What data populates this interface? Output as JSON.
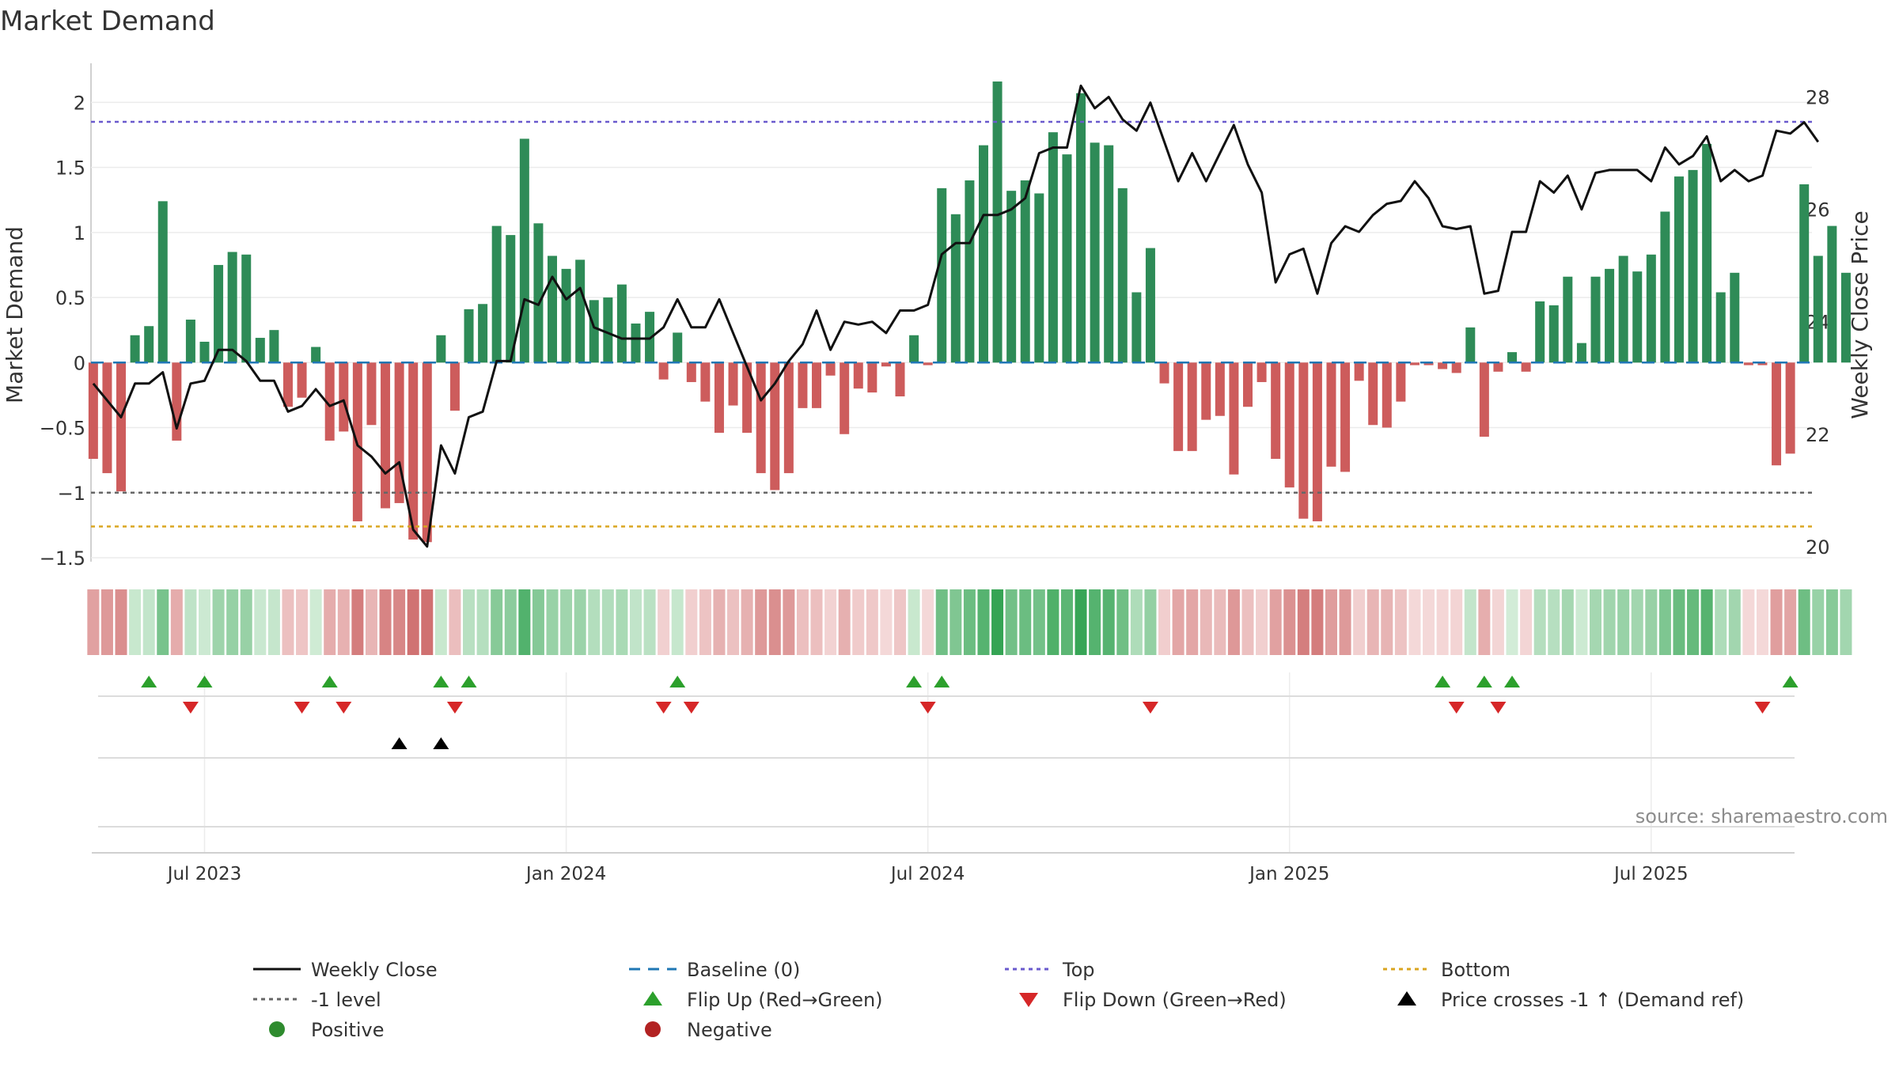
{
  "chart_data": {
    "type": "bar",
    "title": "Market Demand",
    "ylabel": "Market Demand",
    "y2label": "Weekly Close Price",
    "ylim": [
      -1.5,
      2.3
    ],
    "y2lim": [
      19.8,
      28.6
    ],
    "yticks": [
      -1.5,
      -1,
      -0.5,
      0,
      0.5,
      1,
      1.5,
      2
    ],
    "ytick_labels": [
      "−1.5",
      "−1",
      "−0.5",
      "0",
      "0.5",
      "1",
      "1.5",
      "2"
    ],
    "y2ticks": [
      20,
      22,
      24,
      26,
      28
    ],
    "y2tick_labels": [
      "20",
      "22",
      "24",
      "26",
      "28"
    ],
    "x_range_weeks": [
      -8,
      120
    ],
    "xticks": [
      {
        "week": 0,
        "label": "Jul 2023"
      },
      {
        "week": 26,
        "label": "Jan 2024"
      },
      {
        "week": 52,
        "label": "Jul 2024"
      },
      {
        "week": 78,
        "label": "Jan 2025"
      },
      {
        "week": 104,
        "label": "Jul 2025"
      }
    ],
    "first_week_index": -8,
    "demand": [
      -0.74,
      -0.85,
      -0.99,
      0.21,
      0.28,
      1.24,
      -0.6,
      0.33,
      0.16,
      0.75,
      0.85,
      0.83,
      0.19,
      0.25,
      -0.34,
      -0.27,
      0.12,
      -0.6,
      -0.53,
      -1.22,
      -0.48,
      -1.12,
      -1.08,
      -1.36,
      -1.38,
      0.21,
      -0.37,
      0.41,
      0.45,
      1.05,
      0.98,
      1.72,
      1.07,
      0.82,
      0.72,
      0.79,
      0.48,
      0.5,
      0.6,
      0.3,
      0.39,
      -0.13,
      0.23,
      -0.15,
      -0.3,
      -0.54,
      -0.33,
      -0.54,
      -0.85,
      -0.98,
      -0.85,
      -0.35,
      -0.35,
      -0.1,
      -0.55,
      -0.2,
      -0.23,
      -0.03,
      -0.26,
      0.21,
      -0.02,
      1.34,
      1.14,
      1.4,
      1.67,
      2.16,
      1.32,
      1.4,
      1.3,
      1.77,
      1.6,
      2.07,
      1.69,
      1.67,
      1.34,
      0.54,
      0.88,
      -0.16,
      -0.68,
      -0.68,
      -0.44,
      -0.41,
      -0.86,
      -0.34,
      -0.15,
      -0.74,
      -0.96,
      -1.2,
      -1.22,
      -0.8,
      -0.84,
      -0.14,
      -0.48,
      -0.5,
      -0.3,
      -0.02,
      -0.02,
      -0.05,
      -0.08,
      0.27,
      -0.57,
      -0.07,
      0.08,
      -0.07,
      0.47,
      0.44,
      0.66,
      0.15,
      0.66,
      0.72,
      0.82,
      0.7,
      0.83,
      1.16,
      1.43,
      1.48,
      1.68,
      0.54,
      0.69,
      -0.02,
      -0.02,
      -0.79,
      -0.7,
      1.37,
      0.82,
      1.05,
      0.69
    ],
    "close": [
      22.9,
      22.6,
      22.3,
      22.9,
      22.9,
      23.1,
      22.1,
      22.9,
      22.95,
      23.5,
      23.5,
      23.3,
      22.95,
      22.95,
      22.4,
      22.5,
      22.8,
      22.5,
      22.6,
      21.8,
      21.6,
      21.3,
      21.5,
      20.3,
      20.0,
      21.8,
      21.3,
      22.3,
      22.4,
      23.3,
      23.3,
      24.4,
      24.3,
      24.8,
      24.4,
      24.6,
      23.9,
      23.8,
      23.7,
      23.7,
      23.7,
      23.9,
      24.4,
      23.9,
      23.9,
      24.4,
      23.8,
      23.2,
      22.6,
      22.9,
      23.3,
      23.6,
      24.2,
      23.5,
      24.0,
      23.95,
      24.0,
      23.8,
      24.2,
      24.2,
      24.3,
      25.2,
      25.4,
      25.4,
      25.9,
      25.9,
      26.0,
      26.2,
      27.0,
      27.1,
      27.1,
      28.2,
      27.8,
      28.0,
      27.6,
      27.4,
      27.9,
      27.2,
      26.5,
      27.0,
      26.5,
      27.0,
      27.5,
      26.8,
      26.3,
      24.7,
      25.2,
      25.3,
      24.5,
      25.4,
      25.7,
      25.6,
      25.9,
      26.1,
      26.15,
      26.5,
      26.2,
      25.7,
      25.65,
      25.7,
      24.5,
      24.55,
      25.6,
      25.6,
      26.5,
      26.3,
      26.6,
      26.0,
      26.65,
      26.7,
      26.7,
      26.7,
      26.5,
      27.1,
      26.8,
      26.95,
      27.3,
      26.5,
      26.7,
      26.5,
      26.6,
      27.4,
      27.35,
      27.55,
      27.2
    ],
    "baseline": 0,
    "top_level": 1.85,
    "bottom_level": -1.26,
    "minus1_level": -1,
    "flip_up_weeks": [
      -4,
      0,
      9,
      17,
      19,
      34,
      51,
      53,
      89,
      92,
      94,
      114
    ],
    "flip_down_weeks": [
      -1,
      7,
      10,
      18,
      33,
      35,
      52,
      68,
      90,
      93,
      112
    ],
    "price_cross_weeks": [
      14,
      17
    ],
    "colors": {
      "positive_bar": "#2e8b57",
      "negative_bar": "#cd5c5c",
      "close_line": "#111111",
      "baseline": "#1f77b4",
      "top": "#6a5acd",
      "bottom": "#daa520",
      "minus1": "#666666",
      "flip_up": "#2ca02c",
      "flip_down": "#d62728",
      "cross": "#000000",
      "positive_dot": "#2e8b2e",
      "negative_dot": "#b22222"
    },
    "source_note": "source: sharemaestro.com"
  },
  "legend": [
    {
      "label": "Weekly Close",
      "kind": "line-solid",
      "color": "#111111"
    },
    {
      "label": "Baseline (0)",
      "kind": "line-dashed",
      "color": "#1f77b4"
    },
    {
      "label": "Top",
      "kind": "line-dotted",
      "color": "#6a5acd"
    },
    {
      "label": "Bottom",
      "kind": "line-dotted",
      "color": "#daa520"
    },
    {
      "label": "-1 level",
      "kind": "line-dotted",
      "color": "#666666"
    },
    {
      "label": "Flip Up (Red→Green)",
      "kind": "tri-up",
      "color": "#2ca02c"
    },
    {
      "label": "Flip Down (Green→Red)",
      "kind": "tri-down",
      "color": "#d62728"
    },
    {
      "label": "Price crosses -1 ↑ (Demand ref)",
      "kind": "tri-up",
      "color": "#000000"
    },
    {
      "label": "Positive",
      "kind": "dot",
      "color": "#2e8b2e"
    },
    {
      "label": "Negative",
      "kind": "dot",
      "color": "#b22222"
    }
  ]
}
